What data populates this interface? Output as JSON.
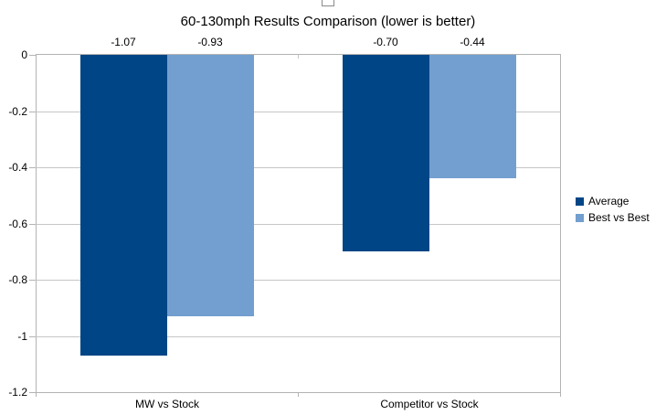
{
  "chart": {
    "title": "60-130mph Results Comparison (lower is better)"
  },
  "chart_data": {
    "type": "bar",
    "title": "60-130mph Results Comparison (lower is better)",
    "categories": [
      "MW vs Stock",
      "Competitor vs Stock"
    ],
    "series": [
      {
        "name": "Average",
        "color": "#004586",
        "values": [
          -1.07,
          -0.7
        ],
        "labels": [
          "-1.07",
          "-0.70"
        ]
      },
      {
        "name": "Best vs Best",
        "color": "#729FCF",
        "values": [
          -0.93,
          -0.44
        ],
        "labels": [
          "-0.93",
          "-0.44"
        ]
      }
    ],
    "y_tick_labels": [
      "0",
      "-0.2",
      "-0.4",
      "-0.6",
      "-0.8",
      "-1",
      "-1.2"
    ],
    "y_tick_values": [
      0,
      -0.2,
      -0.4,
      -0.6,
      -0.8,
      -1.0,
      -1.2
    ],
    "ylim": [
      0,
      -1.2
    ],
    "grid": true,
    "legend_position": "right",
    "legend_entries": [
      "Average",
      "Best vs Best"
    ],
    "colors": {
      "grid_line": "#c6c6c6",
      "axis_line": "#b3b3b3",
      "text": "#000000"
    }
  }
}
